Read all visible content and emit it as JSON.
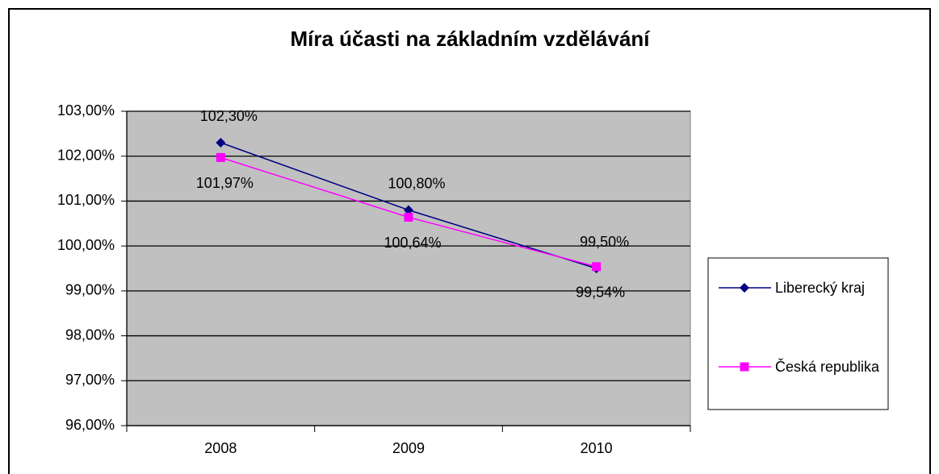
{
  "chart_data": {
    "type": "line",
    "title": "Míra účasti na základním vzdělávání",
    "categories": [
      "2008",
      "2009",
      "2010"
    ],
    "series": [
      {
        "name": "Liberecký kraj",
        "color": "#000080",
        "marker": "diamond",
        "values": [
          102.3,
          100.8,
          99.5
        ],
        "value_labels": [
          "102,30%",
          "100,80%",
          "99,50%"
        ]
      },
      {
        "name": "Česká republika",
        "color": "#ff00ff",
        "marker": "square",
        "values": [
          101.97,
          100.64,
          99.54
        ],
        "value_labels": [
          "101,97%",
          "100,64%",
          "99,54%"
        ]
      }
    ],
    "ylim": [
      96,
      103
    ],
    "yticks": [
      {
        "value": 96,
        "label": "96,00%"
      },
      {
        "value": 97,
        "label": "97,00%"
      },
      {
        "value": 98,
        "label": "98,00%"
      },
      {
        "value": 99,
        "label": "99,00%"
      },
      {
        "value": 100,
        "label": "100,00%"
      },
      {
        "value": 101,
        "label": "101,00%"
      },
      {
        "value": 102,
        "label": "102,00%"
      },
      {
        "value": 103,
        "label": "103,00%"
      }
    ],
    "grid": true,
    "legend": "right"
  }
}
